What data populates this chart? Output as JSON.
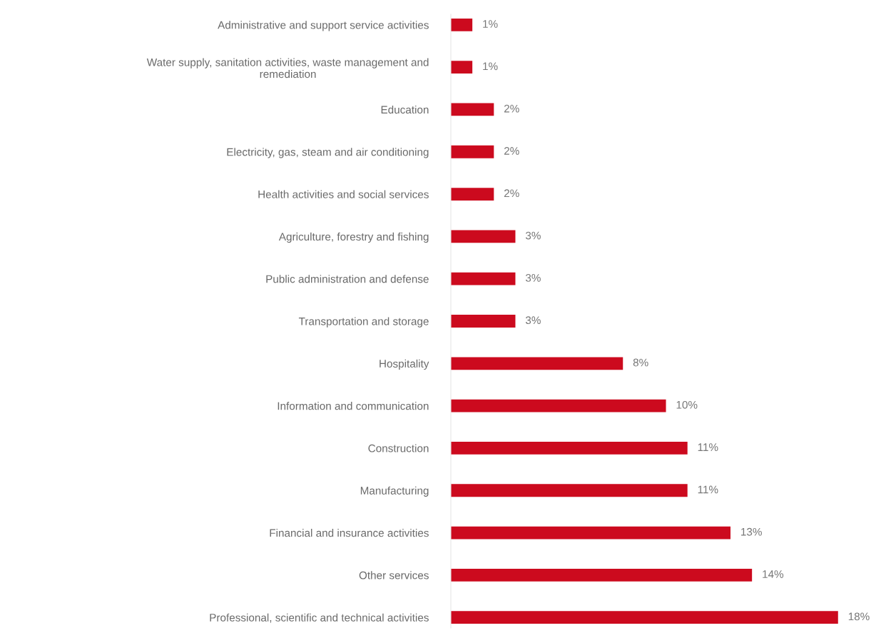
{
  "chart_data": {
    "type": "bar",
    "orientation": "horizontal",
    "data_labels": false,
    "categories": [
      "Administrative and support service activities",
      "Water supply, sanitation activities, waste management and\nremediation",
      "Education",
      "Electricity, gas, steam and air conditioning",
      "Health activities and social services",
      "Agriculture, forestry and fishing",
      "Public administration and defense",
      "Transportation and storage",
      "Hospitality",
      "Information and communication",
      "Construction",
      "Manufacturing",
      "Financial and insurance activities",
      "Other services",
      "Professional, scientific and technical activities"
    ],
    "values": [
      1,
      1,
      2,
      2,
      2,
      3,
      3,
      3,
      8,
      10,
      11,
      11,
      13,
      14,
      18
    ],
    "value_labels": [
      "1%",
      "1%",
      "2%",
      "2%",
      "2%",
      "3%",
      "3%",
      "3%",
      "8%",
      "10%",
      "11%",
      "11%",
      "13%",
      "14%",
      "18%"
    ],
    "color": "#cc0a1e",
    "grid": false,
    "legend": false
  }
}
